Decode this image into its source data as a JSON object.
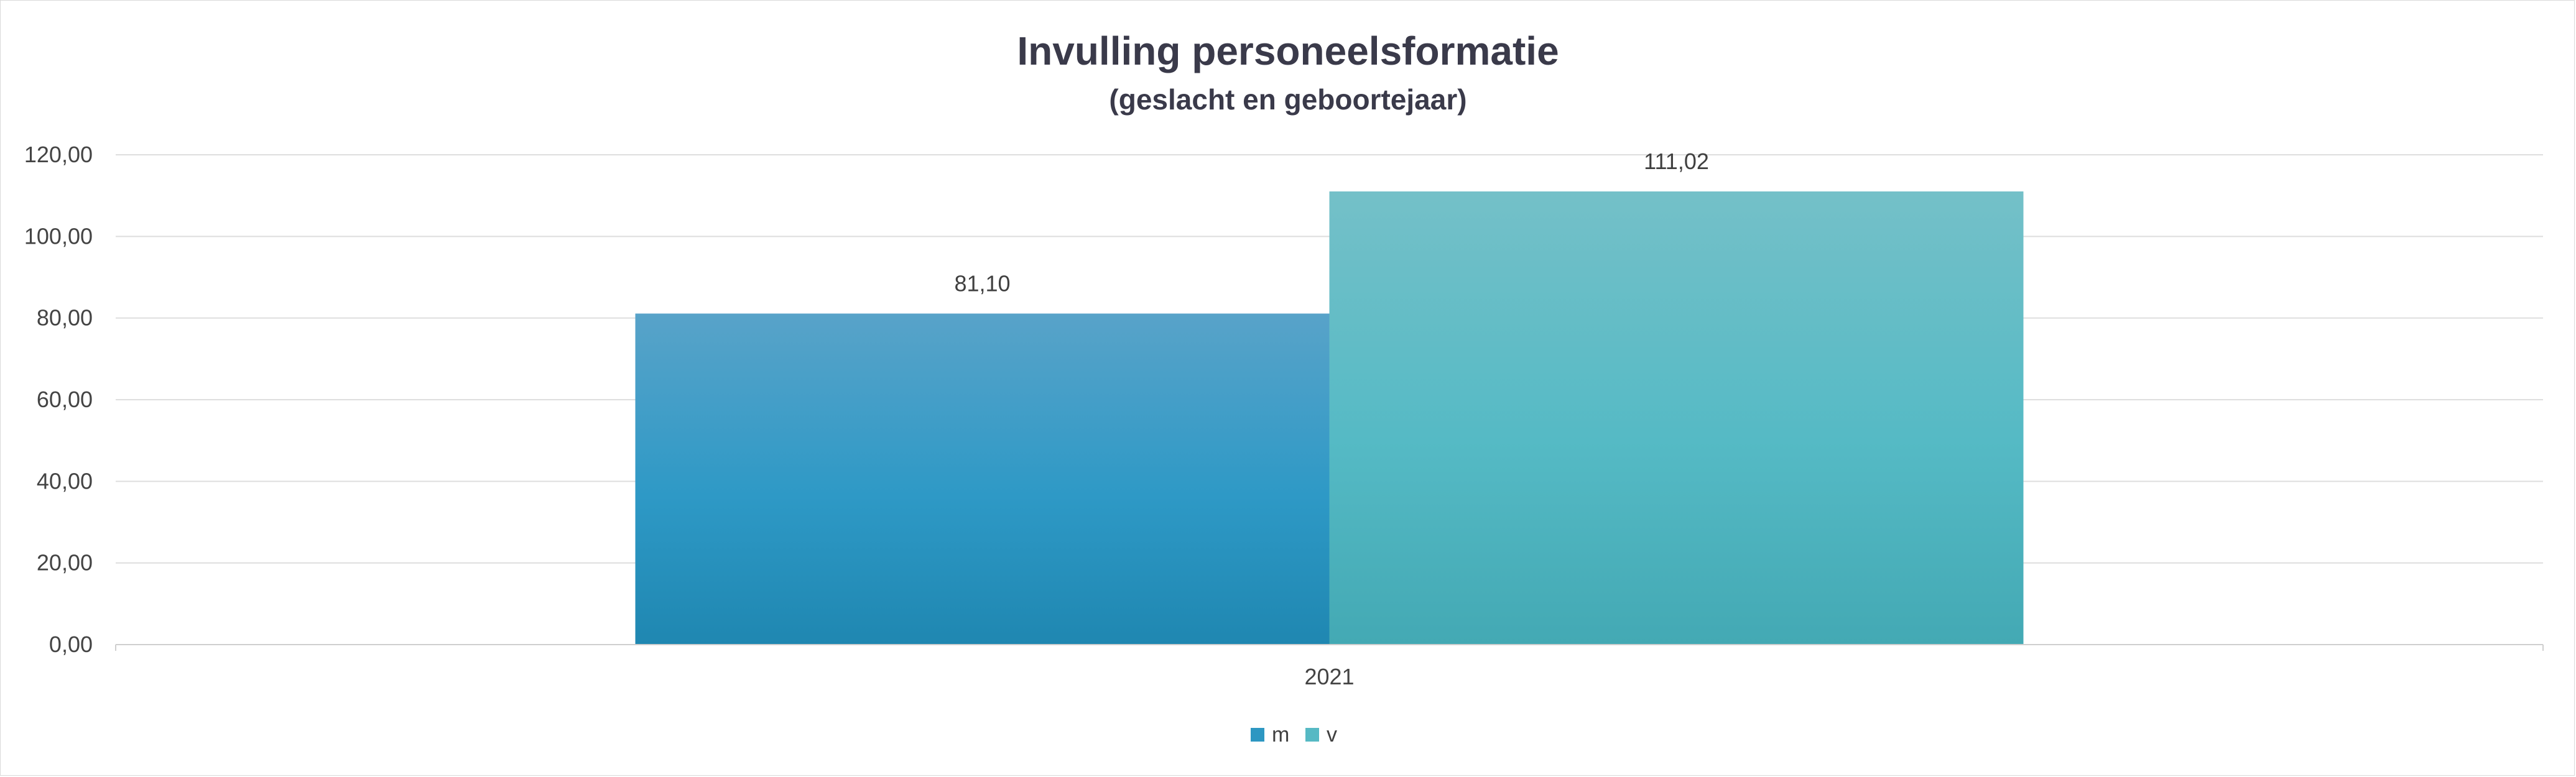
{
  "chart_data": {
    "type": "bar",
    "title": "Invulling personeelsformatie",
    "subtitle": "(geslacht en geboortejaar)",
    "categories": [
      "2021"
    ],
    "series": [
      {
        "name": "m",
        "values": [
          81.1
        ],
        "label": "81,10",
        "color": "#2d97c2"
      },
      {
        "name": "v",
        "values": [
          111.02
        ],
        "label": "111,02",
        "color": "#56b9c4"
      }
    ],
    "ylim": [
      0,
      120
    ],
    "yticks": [
      "0,00",
      "20,00",
      "40,00",
      "60,00",
      "80,00",
      "100,00",
      "120,00"
    ],
    "ytick_values": [
      0,
      20,
      40,
      60,
      80,
      100,
      120
    ],
    "grid": true,
    "legend": "bottom"
  }
}
